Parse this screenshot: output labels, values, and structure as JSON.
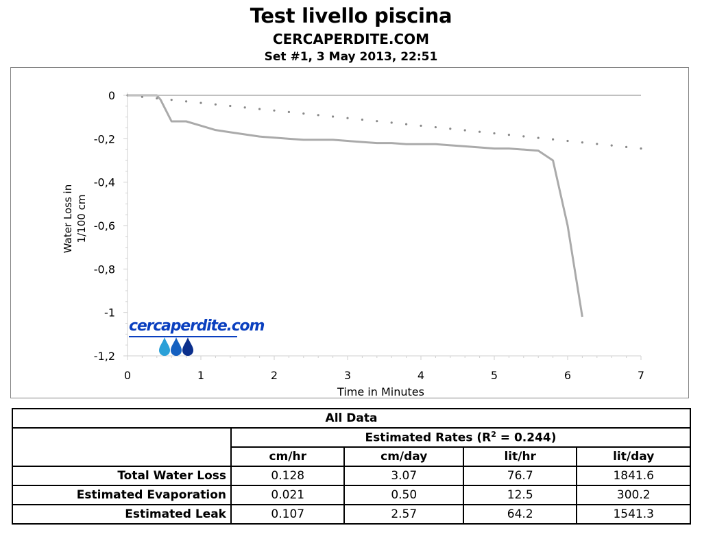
{
  "title": "Test livello piscina",
  "subtitle": "CERCAPERDITE.COM",
  "set_info": "Set #1, 3 May 2013, 22:51",
  "logo_text": "cercaperdite.com",
  "colors": {
    "series_line": "#aaaaaa",
    "zero_line": "#c0c0c0",
    "axis": "#cfcfcf",
    "logo_blue": "#0a3fbf",
    "drop_light": "#2aa0d8",
    "drop_mid": "#1560c0",
    "drop_dark": "#0b2f8c"
  },
  "chart_data": {
    "type": "line",
    "xlabel": "Time in Minutes",
    "ylabel": "Water Loss in 1/100 cm",
    "xlim": [
      0,
      7
    ],
    "ylim": [
      -1.2,
      0
    ],
    "x_ticks": [
      0,
      1,
      2,
      3,
      4,
      5,
      6,
      7
    ],
    "y_ticks": [
      0,
      -0.2,
      -0.4,
      -0.6,
      -0.8,
      -1,
      -1.2
    ],
    "y_tick_labels": [
      "0",
      "-0,2",
      "-0,4",
      "-0,6",
      "-0,8",
      "-1",
      "-1,2"
    ],
    "grid": false,
    "series": [
      {
        "style": "solid",
        "x": [
          0,
          0.2,
          0.4,
          0.45,
          0.6,
          0.8,
          1.0,
          1.2,
          1.4,
          1.6,
          1.8,
          2.0,
          2.2,
          2.4,
          2.6,
          2.8,
          3.0,
          3.2,
          3.4,
          3.6,
          3.8,
          4.0,
          4.2,
          4.4,
          4.6,
          4.8,
          5.0,
          5.2,
          5.4,
          5.6,
          5.8,
          6.0,
          6.2
        ],
        "y": [
          0,
          0,
          0,
          -0.02,
          -0.12,
          -0.12,
          -0.14,
          -0.16,
          -0.17,
          -0.18,
          -0.19,
          -0.195,
          -0.2,
          -0.205,
          -0.205,
          -0.205,
          -0.21,
          -0.215,
          -0.22,
          -0.22,
          -0.225,
          -0.225,
          -0.225,
          -0.23,
          -0.235,
          -0.24,
          -0.245,
          -0.245,
          -0.25,
          -0.255,
          -0.3,
          -0.6,
          -1.02
        ]
      },
      {
        "style": "dotted",
        "x": [
          0,
          0.2,
          0.4,
          0.6,
          0.8,
          1.0,
          1.2,
          1.4,
          1.6,
          1.8,
          2.0,
          2.2,
          2.4,
          2.6,
          2.8,
          3.0,
          3.2,
          3.4,
          3.6,
          3.8,
          4.0,
          4.2,
          4.4,
          4.6,
          4.8,
          5.0,
          5.2,
          5.4,
          5.6,
          5.8,
          6.0,
          6.2,
          6.4,
          6.6,
          6.8,
          7.0
        ],
        "y": [
          0,
          -0.007,
          -0.014,
          -0.021,
          -0.028,
          -0.035,
          -0.042,
          -0.049,
          -0.056,
          -0.063,
          -0.07,
          -0.077,
          -0.084,
          -0.091,
          -0.098,
          -0.105,
          -0.112,
          -0.119,
          -0.126,
          -0.133,
          -0.14,
          -0.147,
          -0.154,
          -0.161,
          -0.168,
          -0.175,
          -0.182,
          -0.189,
          -0.196,
          -0.203,
          -0.21,
          -0.217,
          -0.224,
          -0.231,
          -0.238,
          -0.245
        ]
      },
      {
        "style": "zero-line",
        "x": [
          0,
          7
        ],
        "y": [
          0,
          0
        ]
      }
    ]
  },
  "table": {
    "caption": "All Data",
    "rates_header_prefix": "Estimated Rates (R",
    "rates_header_sup": "2",
    "rates_header_suffix": " = 0.244)",
    "columns": [
      "cm/hr",
      "cm/day",
      "lit/hr",
      "lit/day"
    ],
    "rows": [
      {
        "label": "Total Water Loss",
        "values": [
          "0.128",
          "3.07",
          "76.7",
          "1841.6"
        ]
      },
      {
        "label": "Estimated Evaporation",
        "values": [
          "0.021",
          "0.50",
          "12.5",
          "300.2"
        ]
      },
      {
        "label": "Estimated Leak",
        "values": [
          "0.107",
          "2.57",
          "64.2",
          "1541.3"
        ]
      }
    ]
  }
}
